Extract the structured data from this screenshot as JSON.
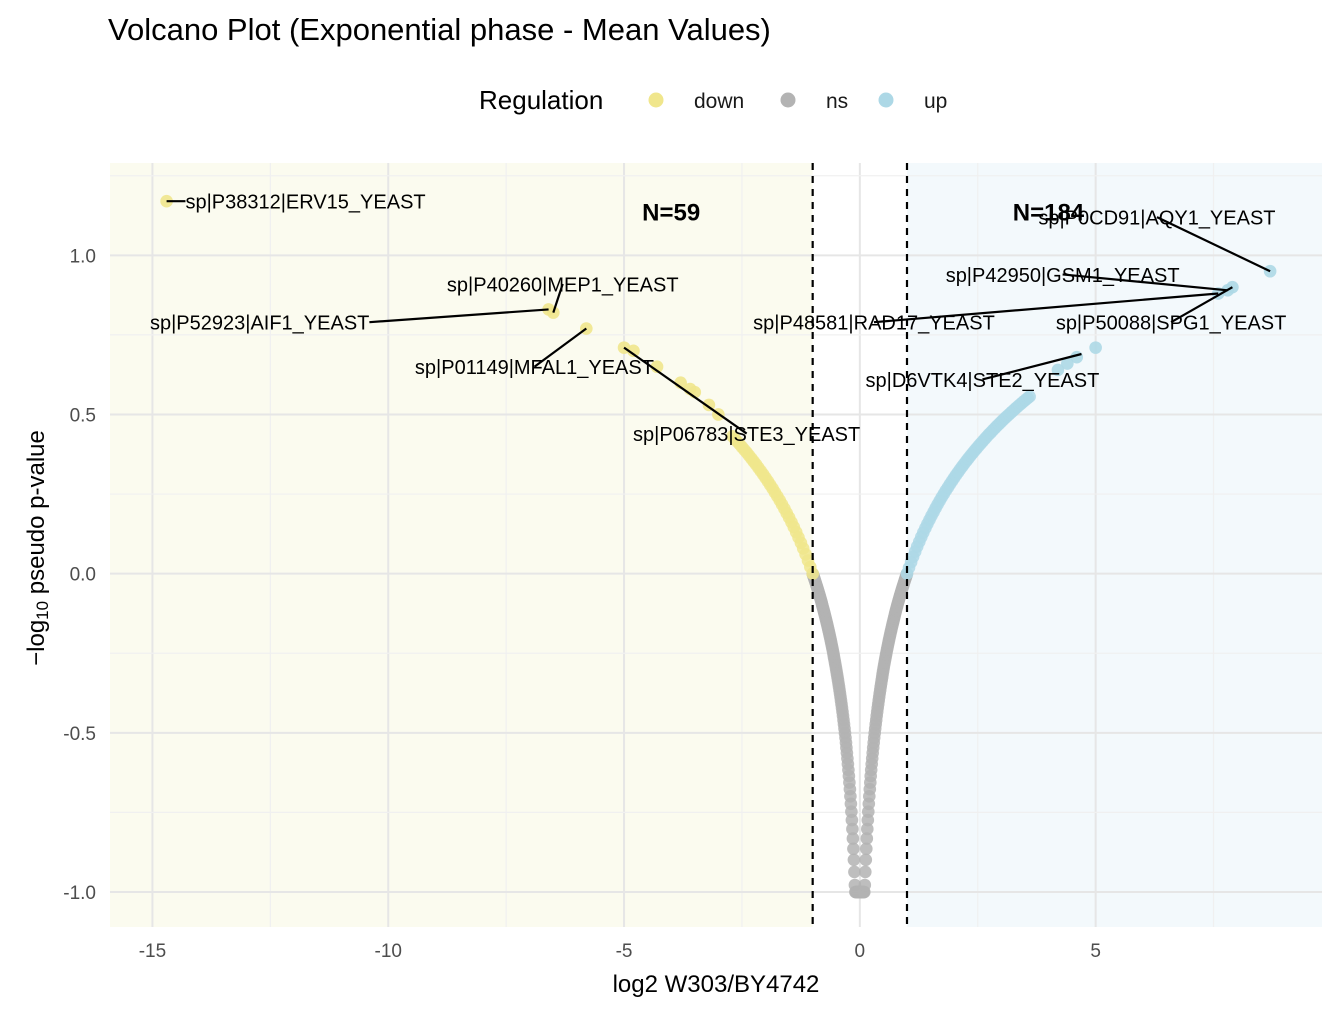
{
  "chart_data": {
    "type": "scatter",
    "title": "Volcano Plot (Exponential phase - Mean Values)",
    "xlabel": "log2 W303/BY4742",
    "ylabel_prefix": "−log",
    "ylabel_sub": "10",
    "ylabel_suffix": " pseudo p-value",
    "xlim": [
      -15.9,
      9.8
    ],
    "ylim": [
      -1.11,
      1.29
    ],
    "x_ticks": [
      -15,
      -10,
      -5,
      0,
      5
    ],
    "x_tick_labels": [
      "-15",
      "-10",
      "-5",
      "0",
      "5"
    ],
    "y_ticks": [
      -1.0,
      -0.5,
      0.0,
      0.5,
      1.0
    ],
    "y_tick_labels": [
      "-1.0",
      "-0.5",
      "0.0",
      "0.5",
      "1.0"
    ],
    "grid": true,
    "thresholds": [
      -1,
      1
    ],
    "legend": {
      "title": "Regulation",
      "position": "top",
      "entries": [
        {
          "label": "down",
          "color": "#f0e68c"
        },
        {
          "label": "ns",
          "color": "#b3b3b3"
        },
        {
          "label": "up",
          "color": "#add8e6"
        }
      ]
    },
    "region_colors": {
      "down": "#fbfbef",
      "up": "#f3f9fc"
    },
    "counts": [
      {
        "text": "N=59",
        "x": -4.0,
        "y": 1.11
      },
      {
        "text": "N=184",
        "x": 4.0,
        "y": 1.11
      }
    ],
    "series": [
      {
        "name": "down",
        "color": "#f0e68c",
        "points": [
          [
            -14.7,
            1.17
          ],
          [
            -6.6,
            0.83
          ],
          [
            -6.5,
            0.82
          ],
          [
            -5.8,
            0.77
          ],
          [
            -5.0,
            0.71
          ],
          [
            -4.8,
            0.7
          ],
          [
            -4.3,
            0.65
          ],
          [
            -3.8,
            0.6
          ],
          [
            -3.6,
            0.58
          ],
          [
            -3.5,
            0.57
          ],
          [
            -3.2,
            0.53
          ],
          [
            -3.0,
            0.5
          ]
        ]
      },
      {
        "name": "up",
        "color": "#add8e6",
        "points": [
          [
            8.7,
            0.95
          ],
          [
            7.9,
            0.9
          ],
          [
            7.8,
            0.89
          ],
          [
            7.6,
            0.88
          ],
          [
            5.0,
            0.71
          ],
          [
            4.6,
            0.68
          ],
          [
            4.4,
            0.66
          ],
          [
            4.2,
            0.64
          ]
        ]
      }
    ],
    "curve": {
      "down_edge_x": -2.7,
      "up_edge_x": 3.6,
      "ns_min_y": -1.0
    },
    "annotations": [
      {
        "text": "sp|P38312|ERV15_YEAST",
        "px": -14.7,
        "py": 1.17,
        "lx": -14.3,
        "ly": 1.17,
        "anchor": "start"
      },
      {
        "text": "sp|P40260|MEP1_YEAST",
        "px": -6.5,
        "py": 0.82,
        "lx": -6.3,
        "ly": 0.91,
        "anchor": "middle"
      },
      {
        "text": "sp|P52923|AIF1_YEAST",
        "px": -6.6,
        "py": 0.83,
        "lx": -10.4,
        "ly": 0.79,
        "anchor": "end"
      },
      {
        "text": "sp|P01149|MFAL1_YEAST",
        "px": -5.8,
        "py": 0.77,
        "lx": -6.9,
        "ly": 0.65,
        "anchor": "middle"
      },
      {
        "text": "sp|P06783|STE3_YEAST",
        "px": -5.0,
        "py": 0.71,
        "lx": -2.4,
        "ly": 0.44,
        "anchor": "middle"
      },
      {
        "text": "sp|P0CD91|AQY1_YEAST",
        "px": 8.7,
        "py": 0.95,
        "lx": 6.3,
        "ly": 1.12,
        "anchor": "middle"
      },
      {
        "text": "sp|P42950|GSM1_YEAST",
        "px": 7.8,
        "py": 0.89,
        "lx": 4.3,
        "ly": 0.94,
        "anchor": "middle"
      },
      {
        "text": "sp|P48581|RAD17_YEAST",
        "px": 7.6,
        "py": 0.88,
        "lx": 0.3,
        "ly": 0.79,
        "anchor": "middle"
      },
      {
        "text": "sp|P50088|SPG1_YEAST",
        "px": 7.9,
        "py": 0.9,
        "lx": 6.6,
        "ly": 0.79,
        "anchor": "middle"
      },
      {
        "text": "sp|D6VTK4|STE2_YEAST",
        "px": 4.7,
        "py": 0.69,
        "lx": 2.6,
        "ly": 0.61,
        "anchor": "middle"
      }
    ]
  }
}
